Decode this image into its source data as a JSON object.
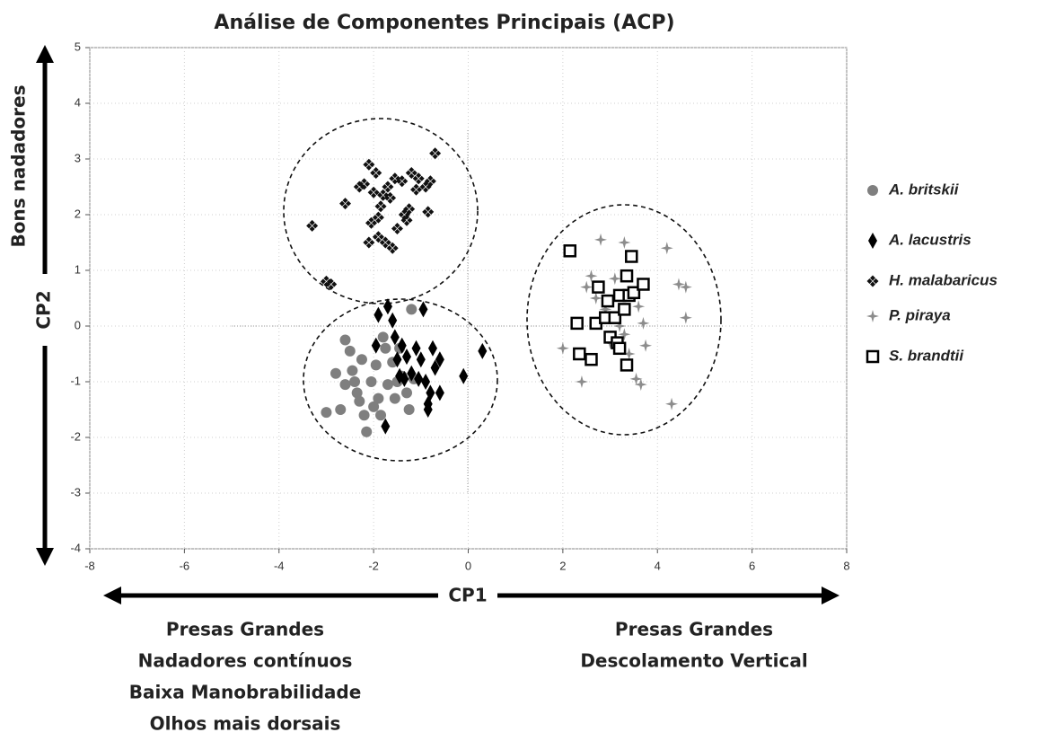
{
  "chart_data": {
    "type": "scatter",
    "title": "Análise de Componentes Principais (ACP)",
    "x_label": "CP1",
    "y_label": "CP2",
    "y_annotation": "Bons nadadores",
    "notes_left": [
      "Presas Grandes",
      "Nadadores contínuos",
      "Baixa Manobrabilidade",
      "Olhos mais dorsais"
    ],
    "notes_right": [
      "Presas Grandes",
      "Descolamento Vertical"
    ],
    "xlim": [
      -8,
      8
    ],
    "xticks": [
      -8,
      -6,
      -4,
      -2,
      0,
      2,
      4,
      6,
      8
    ],
    "ylim": [
      -4,
      5
    ],
    "yticks": [
      -4,
      -3,
      -2,
      -1,
      0,
      1,
      2,
      3,
      4,
      5
    ],
    "grid": true,
    "legend": "right",
    "series": [
      {
        "name": "A. britskii",
        "color": "#7f7f7f",
        "marker": "circle",
        "x": [
          -3.0,
          -2.8,
          -2.6,
          -2.5,
          -2.45,
          -2.4,
          -2.35,
          -2.3,
          -2.2,
          -2.15,
          -2.05,
          -1.95,
          -1.9,
          -1.85,
          -1.75,
          -1.7,
          -1.6,
          -1.55,
          -1.5,
          -1.4,
          -1.3,
          -1.25,
          -1.2,
          -1.15,
          -2.6,
          -2.7,
          -1.8,
          -2.0,
          -1.45,
          -2.25
        ],
        "values": [
          -1.55,
          -0.85,
          -0.25,
          -0.45,
          -0.8,
          -1.0,
          -1.2,
          -1.35,
          -1.6,
          -1.9,
          -1.0,
          -0.7,
          -1.3,
          -1.6,
          -0.4,
          -1.05,
          -0.65,
          -1.3,
          -1.0,
          -0.9,
          -1.2,
          -1.5,
          0.3,
          -0.95,
          -1.05,
          -1.5,
          -0.2,
          -1.45,
          -0.4,
          -0.6
        ]
      },
      {
        "name": "A. lacustris",
        "color": "#000000",
        "marker": "diamond",
        "x": [
          -1.9,
          -1.7,
          -1.6,
          -1.55,
          -1.5,
          -1.45,
          -1.4,
          -1.3,
          -1.2,
          -1.1,
          -1.0,
          -0.9,
          -0.85,
          -0.8,
          -0.75,
          -0.7,
          -0.6,
          -0.6,
          -0.1,
          0.3,
          -0.95,
          -1.75,
          -1.95,
          -1.35,
          -0.85,
          -1.05
        ],
        "values": [
          0.2,
          0.35,
          0.1,
          -0.2,
          -0.6,
          -0.9,
          -0.35,
          -0.55,
          -0.85,
          -0.4,
          -0.6,
          -1.0,
          -1.4,
          -1.2,
          -0.4,
          -0.75,
          -1.2,
          -0.6,
          -0.9,
          -0.45,
          0.3,
          -1.8,
          -0.35,
          -0.95,
          -1.5,
          -0.95
        ]
      },
      {
        "name": "H.  malabaricus",
        "color": "#111111",
        "marker": "clover",
        "x": [
          -3.3,
          -3.0,
          -2.9,
          -2.6,
          -2.3,
          -2.2,
          -2.1,
          -2.1,
          -2.0,
          -1.95,
          -1.9,
          -1.9,
          -1.85,
          -1.8,
          -1.75,
          -1.7,
          -1.65,
          -1.6,
          -1.5,
          -1.4,
          -1.35,
          -1.3,
          -1.25,
          -1.2,
          -1.1,
          -1.05,
          -0.9,
          -0.85,
          -0.8,
          -0.7,
          -2.05,
          -1.55
        ],
        "values": [
          1.8,
          0.8,
          0.75,
          2.2,
          2.5,
          2.55,
          2.9,
          1.5,
          2.4,
          2.75,
          1.95,
          1.6,
          2.15,
          2.35,
          1.5,
          2.5,
          2.3,
          1.4,
          1.75,
          2.6,
          2.0,
          1.9,
          2.1,
          2.75,
          2.45,
          2.65,
          2.5,
          2.05,
          2.6,
          3.1,
          1.85,
          2.65
        ]
      },
      {
        "name": "P. piraya",
        "color": "#8c8c8c",
        "marker": "star",
        "x": [
          2.0,
          2.4,
          2.5,
          2.7,
          2.8,
          2.9,
          3.0,
          3.1,
          3.2,
          3.3,
          3.4,
          3.5,
          3.55,
          3.6,
          3.65,
          3.7,
          3.75,
          4.2,
          4.3,
          4.45,
          4.6,
          4.6,
          3.3,
          2.6
        ],
        "values": [
          -0.4,
          -1.0,
          0.7,
          0.5,
          1.55,
          0.3,
          -0.3,
          0.85,
          0.0,
          1.5,
          -0.5,
          0.55,
          -0.95,
          0.35,
          -1.05,
          0.05,
          -0.35,
          1.4,
          -1.4,
          0.75,
          0.7,
          0.15,
          -0.15,
          0.9
        ]
      },
      {
        "name": "S. brandtii",
        "color": "#000000",
        "marker": "square",
        "x": [
          2.15,
          2.3,
          2.35,
          2.6,
          2.7,
          2.75,
          2.9,
          2.95,
          3.0,
          3.1,
          3.15,
          3.2,
          3.2,
          3.3,
          3.35,
          3.35,
          3.4,
          3.45,
          3.5,
          3.7
        ],
        "values": [
          1.35,
          0.05,
          -0.5,
          -0.6,
          0.05,
          0.7,
          0.15,
          0.45,
          -0.2,
          0.15,
          -0.3,
          -0.4,
          0.55,
          0.3,
          0.9,
          -0.7,
          0.55,
          1.25,
          0.6,
          0.75
        ]
      }
    ]
  }
}
